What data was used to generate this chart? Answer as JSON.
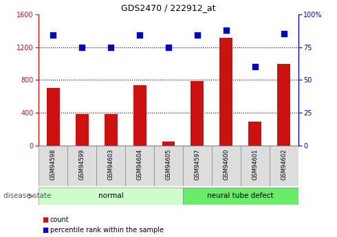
{
  "title": "GDS2470 / 222912_at",
  "samples": [
    "GSM94598",
    "GSM94599",
    "GSM94603",
    "GSM94604",
    "GSM94605",
    "GSM94597",
    "GSM94600",
    "GSM94601",
    "GSM94602"
  ],
  "counts": [
    700,
    390,
    390,
    740,
    50,
    790,
    1310,
    290,
    1000
  ],
  "percentiles": [
    84,
    75,
    75,
    84,
    75,
    84,
    88,
    60,
    85
  ],
  "bar_color": "#cc1111",
  "dot_color": "#0000cc",
  "left_ylim": [
    0,
    1600
  ],
  "right_ylim": [
    0,
    100
  ],
  "left_yticks": [
    0,
    400,
    800,
    1200,
    1600
  ],
  "right_yticks": [
    0,
    25,
    50,
    75,
    100
  ],
  "right_yticklabels": [
    "0",
    "25",
    "50",
    "75",
    "100%"
  ],
  "grid_lines": [
    400,
    800,
    1200
  ],
  "groups": [
    {
      "label": "normal",
      "start": 0,
      "end": 4,
      "color": "#ccffcc"
    },
    {
      "label": "neural tube defect",
      "start": 5,
      "end": 8,
      "color": "#66ee66"
    }
  ],
  "group_label": "disease state",
  "legend_items": [
    {
      "label": "count",
      "color": "#cc1111"
    },
    {
      "label": "percentile rank within the sample",
      "color": "#0000cc"
    }
  ],
  "tick_box_color": "#dddddd",
  "tick_box_edge": "#888888",
  "bg_color": "#ffffff",
  "bar_width": 0.45,
  "dot_size": 28
}
